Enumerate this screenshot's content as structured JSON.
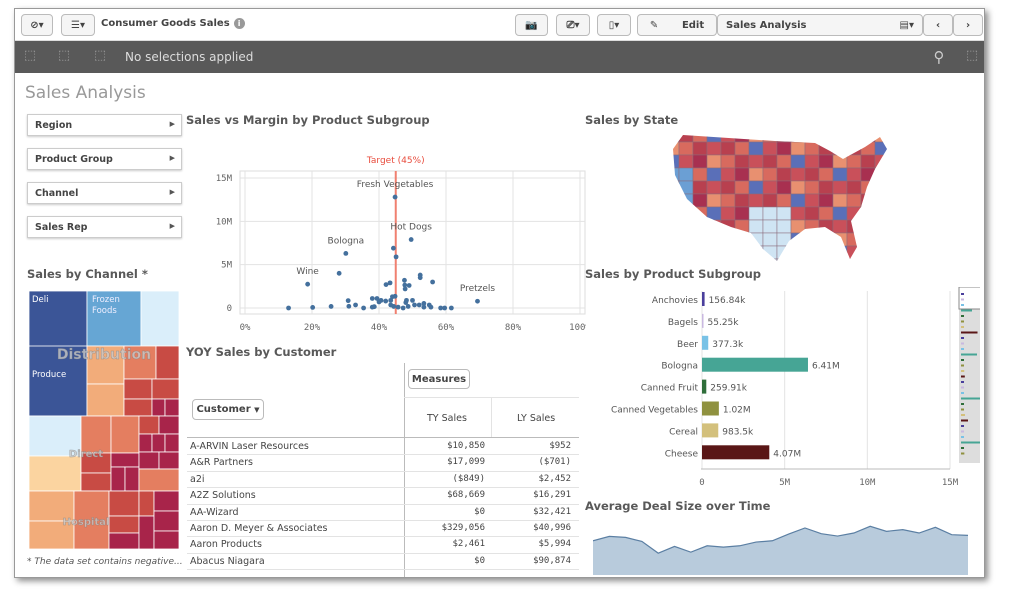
{
  "toolbar": {
    "app_title": "Consumer Goods Sales",
    "edit_label": "Edit",
    "sheet_name": "Sales Analysis"
  },
  "selections": {
    "text": "No selections applied"
  },
  "sheet_title": "Sales Analysis",
  "filters": [
    "Region",
    "Product Group",
    "Channel",
    "Sales Rep"
  ],
  "treemap": {
    "title": "Sales by Channel *",
    "footnote": "* The data set contains negative...",
    "groups": [
      "Distribution",
      "Direct",
      "Hospital"
    ],
    "leaves": [
      "Deli",
      "Frozen Foods",
      "Produce"
    ]
  },
  "scatter": {
    "title": "Sales vs Margin by Product Subgroup",
    "target_label": "Target (45%)",
    "target": 45,
    "x_ticks": [
      "0%",
      "20%",
      "40%",
      "60%",
      "80%",
      "100%"
    ],
    "y_ticks": [
      "0",
      "5M",
      "10M",
      "15M"
    ],
    "xlim": [
      0,
      100
    ],
    "ylim": [
      0,
      15
    ],
    "labeled": [
      {
        "name": "Fresh Vegetables",
        "x": 44.8,
        "y": 12.8
      },
      {
        "name": "Hot Dogs",
        "x": 49.6,
        "y": 7.9
      },
      {
        "name": "Bologna",
        "x": 30.1,
        "y": 6.3
      },
      {
        "name": "Wine",
        "x": 18.7,
        "y": 2.75
      },
      {
        "name": "Pretzels",
        "x": 69.4,
        "y": 0.78
      }
    ],
    "points": [
      [
        44.3,
        6.9
      ],
      [
        45.1,
        5.9
      ],
      [
        28.1,
        4.0
      ],
      [
        52.3,
        3.8
      ],
      [
        52.3,
        3.5
      ],
      [
        56,
        3.0
      ],
      [
        43.3,
        2.9
      ],
      [
        42.1,
        2.7
      ],
      [
        47.6,
        3.2
      ],
      [
        47.7,
        2.65
      ],
      [
        49,
        2.6
      ],
      [
        47.8,
        2.2
      ],
      [
        13,
        0
      ],
      [
        20.2,
        0.07
      ],
      [
        25.7,
        0.18
      ],
      [
        30.8,
        0.85
      ],
      [
        31,
        0.2
      ],
      [
        33,
        0.35
      ],
      [
        35.4,
        0
      ],
      [
        38,
        1.1
      ],
      [
        39.4,
        1.1
      ],
      [
        40,
        0.7
      ],
      [
        40.6,
        0.88
      ],
      [
        42,
        0.8
      ],
      [
        43.5,
        0.88
      ],
      [
        44,
        1.3
      ],
      [
        44.8,
        1.35
      ],
      [
        38,
        0.1
      ],
      [
        38.6,
        0.15
      ],
      [
        43.5,
        0.35
      ],
      [
        44.4,
        0.18
      ],
      [
        45.7,
        0.1
      ],
      [
        47.2,
        0
      ],
      [
        48,
        0.63
      ],
      [
        48.2,
        0.88
      ],
      [
        48.7,
        0.18
      ],
      [
        50,
        0.88
      ],
      [
        50.6,
        0.35
      ],
      [
        52,
        0.35
      ],
      [
        53.4,
        0.1
      ],
      [
        53.4,
        0.53
      ],
      [
        55,
        0.35
      ],
      [
        55.5,
        0.1
      ],
      [
        58.4,
        0
      ],
      [
        59.6,
        0
      ],
      [
        61.6,
        0
      ]
    ]
  },
  "table": {
    "title": "YOY Sales by Customer",
    "measures_label": "Measures",
    "dimension_label": "Customer",
    "columns": [
      "TY Sales",
      "LY Sales"
    ],
    "rows": [
      [
        "A-ARVIN Laser Resources",
        "$10,850",
        "$952"
      ],
      [
        "A&R Partners",
        "$17,099",
        "($701)"
      ],
      [
        "a2i",
        "($849)",
        "$2,452"
      ],
      [
        "A2Z Solutions",
        "$68,669",
        "$16,291"
      ],
      [
        "AA-Wizard",
        "$0",
        "$32,421"
      ],
      [
        "Aaron D. Meyer & Associates",
        "$329,056",
        "$40,996"
      ],
      [
        "Aaron Products",
        "$2,461",
        "$5,994"
      ],
      [
        "Abacus Niagara",
        "$0",
        "$90,874"
      ]
    ]
  },
  "map": {
    "title": "Sales by State"
  },
  "bars": {
    "title": "Sales by Product Subgroup",
    "x_ticks": [
      "0",
      "5M",
      "10M",
      "15M"
    ],
    "xlim": [
      0,
      15
    ],
    "items": [
      {
        "label": "Anchovies",
        "value": 0.15684,
        "text": "156.84k",
        "color": "#4a3f9c"
      },
      {
        "label": "Bagels",
        "value": 0.05525,
        "text": "55.25k",
        "color": "#c9b8e0"
      },
      {
        "label": "Beer",
        "value": 0.3773,
        "text": "377.3k",
        "color": "#79c2e6"
      },
      {
        "label": "Bologna",
        "value": 6.41,
        "text": "6.41M",
        "color": "#46a595"
      },
      {
        "label": "Canned Fruit",
        "value": 0.25991,
        "text": "259.91k",
        "color": "#2f6e3a"
      },
      {
        "label": "Canned Vegetables",
        "value": 1.02,
        "text": "1.02M",
        "color": "#8f913f"
      },
      {
        "label": "Cereal",
        "value": 0.9835,
        "text": "983.5k",
        "color": "#d3c07c"
      },
      {
        "label": "Cheese",
        "value": 4.07,
        "text": "4.07M",
        "color": "#5a1616"
      }
    ]
  },
  "area": {
    "title": "Average Deal Size over Time",
    "values": [
      102,
      115,
      112,
      100,
      65,
      85,
      68,
      87,
      83,
      87,
      98,
      102,
      122,
      140,
      123,
      116,
      125,
      145,
      130,
      135,
      125,
      142,
      120,
      118
    ],
    "color": "#b8cbdc"
  }
}
